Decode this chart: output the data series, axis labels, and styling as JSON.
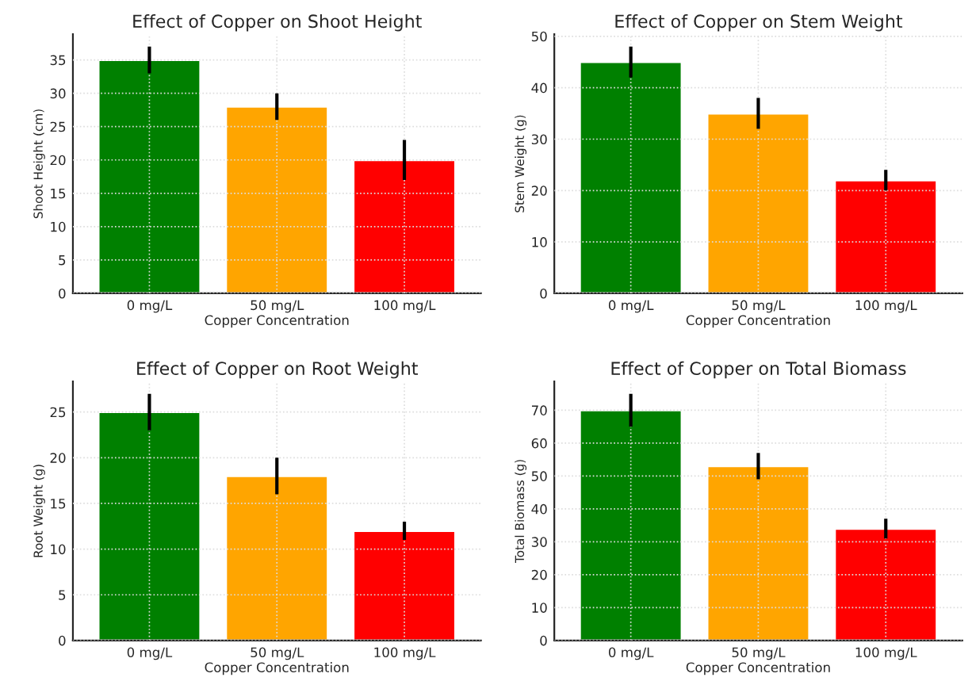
{
  "chart_data": [
    {
      "type": "bar",
      "title": "Effect of Copper on Shoot Height",
      "xlabel": "Copper Concentration",
      "ylabel": "Shoot Height (cm)",
      "categories": [
        "0 mg/L",
        "50 mg/L",
        "100 mg/L"
      ],
      "values": [
        35,
        28,
        20
      ],
      "errors": [
        2,
        2,
        3
      ],
      "colors": [
        "#008000",
        "#ffa500",
        "#ff0000"
      ],
      "ylim": [
        0,
        38.85
      ],
      "yticks": [
        0,
        5,
        10,
        15,
        20,
        25,
        30,
        35
      ],
      "grid": true
    },
    {
      "type": "bar",
      "title": "Effect of Copper on Stem Weight",
      "xlabel": "Copper Concentration",
      "ylabel": "Stem Weight (g)",
      "categories": [
        "0 mg/L",
        "50 mg/L",
        "100 mg/L"
      ],
      "values": [
        45,
        35,
        22
      ],
      "errors": [
        3,
        3,
        2
      ],
      "colors": [
        "#008000",
        "#ffa500",
        "#ff0000"
      ],
      "ylim": [
        0,
        50.4
      ],
      "yticks": [
        0,
        10,
        20,
        30,
        40,
        50
      ],
      "grid": true
    },
    {
      "type": "bar",
      "title": "Effect of Copper on Root Weight",
      "xlabel": "Copper Concentration",
      "ylabel": "Root Weight (g)",
      "categories": [
        "0 mg/L",
        "50 mg/L",
        "100 mg/L"
      ],
      "values": [
        25,
        18,
        12
      ],
      "errors": [
        2,
        2,
        1
      ],
      "colors": [
        "#008000",
        "#ffa500",
        "#ff0000"
      ],
      "ylim": [
        0,
        28.35
      ],
      "yticks": [
        0,
        5,
        10,
        15,
        20,
        25
      ],
      "grid": true
    },
    {
      "type": "bar",
      "title": "Effect of Copper on Total Biomass",
      "xlabel": "Copper Concentration",
      "ylabel": "Total Biomass (g)",
      "categories": [
        "0 mg/L",
        "50 mg/L",
        "100 mg/L"
      ],
      "values": [
        70,
        53,
        34
      ],
      "errors": [
        5,
        4,
        3
      ],
      "colors": [
        "#008000",
        "#ffa500",
        "#ff0000"
      ],
      "ylim": [
        0,
        78.75
      ],
      "yticks": [
        0,
        10,
        20,
        30,
        40,
        50,
        60,
        70
      ],
      "grid": true
    }
  ]
}
